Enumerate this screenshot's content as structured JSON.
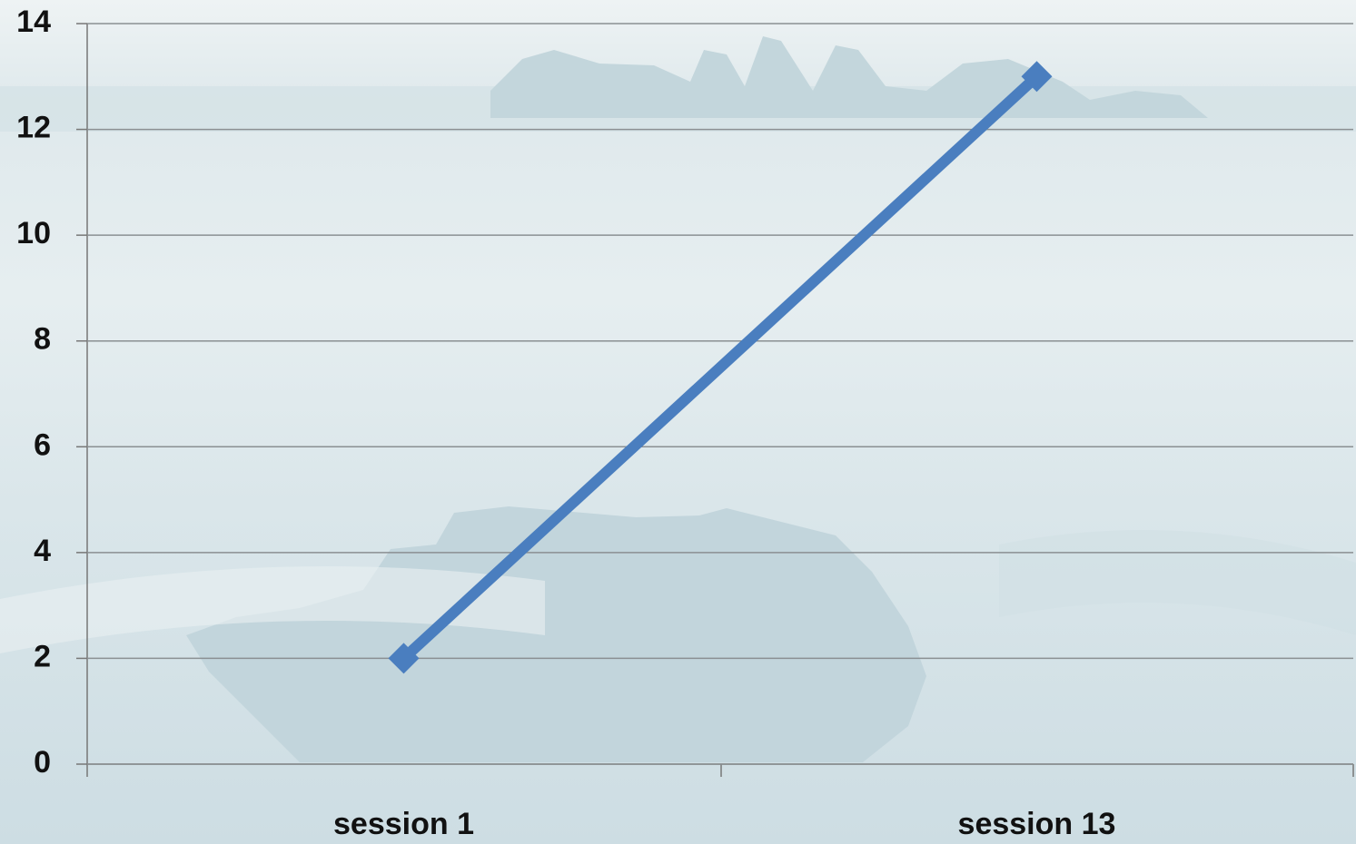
{
  "chart_data": {
    "type": "line",
    "categories": [
      "session 1",
      "session 13"
    ],
    "values": [
      2,
      13
    ],
    "color": "#4a7ebf",
    "ylim": [
      0,
      14
    ],
    "yticks": [
      0,
      2,
      4,
      6,
      8,
      10,
      12,
      14
    ],
    "grid": true
  }
}
